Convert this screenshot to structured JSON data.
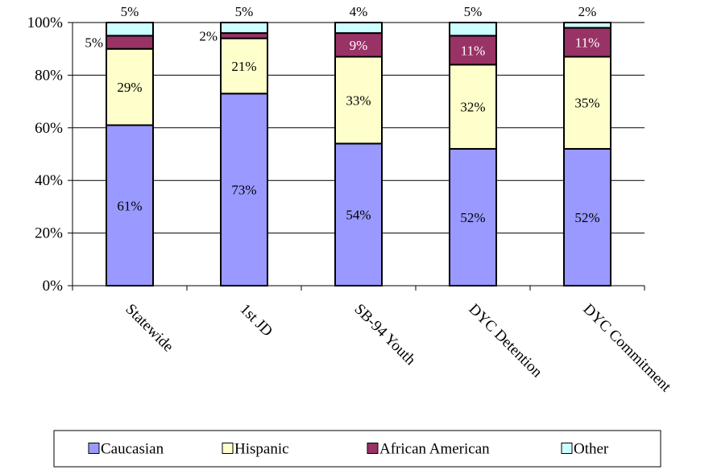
{
  "chart_data": {
    "type": "bar",
    "stacked": true,
    "percent": true,
    "title": "",
    "xlabel": "",
    "ylabel": "",
    "ylim": [
      0,
      100
    ],
    "yticks": [
      "0%",
      "20%",
      "40%",
      "60%",
      "80%",
      "100%"
    ],
    "categories": [
      "Statewide",
      "1st JD",
      "SB-94 Youth",
      "DYC Detention",
      "DYC Commitment"
    ],
    "series": [
      {
        "name": "Caucasian",
        "color": "#9999ff",
        "values": [
          61,
          73,
          54,
          52,
          52
        ],
        "labels": [
          "61%",
          "73%",
          "54%",
          "52%",
          "52%"
        ]
      },
      {
        "name": "Hispanic",
        "color": "#ffffcc",
        "values": [
          29,
          21,
          33,
          32,
          35
        ],
        "labels": [
          "29%",
          "21%",
          "33%",
          "32%",
          "35%"
        ]
      },
      {
        "name": "African American",
        "color": "#993366",
        "values": [
          5,
          2,
          9,
          11,
          11
        ],
        "labels": [
          "5%",
          "2%",
          "9%",
          "11%",
          "11%"
        ]
      },
      {
        "name": "Other",
        "color": "#ccffff",
        "values": [
          5,
          5,
          4,
          5,
          2
        ],
        "labels": [
          "5%",
          "5%",
          "4%",
          "5%",
          "2%"
        ]
      }
    ],
    "grid": true,
    "legend_position": "bottom"
  }
}
